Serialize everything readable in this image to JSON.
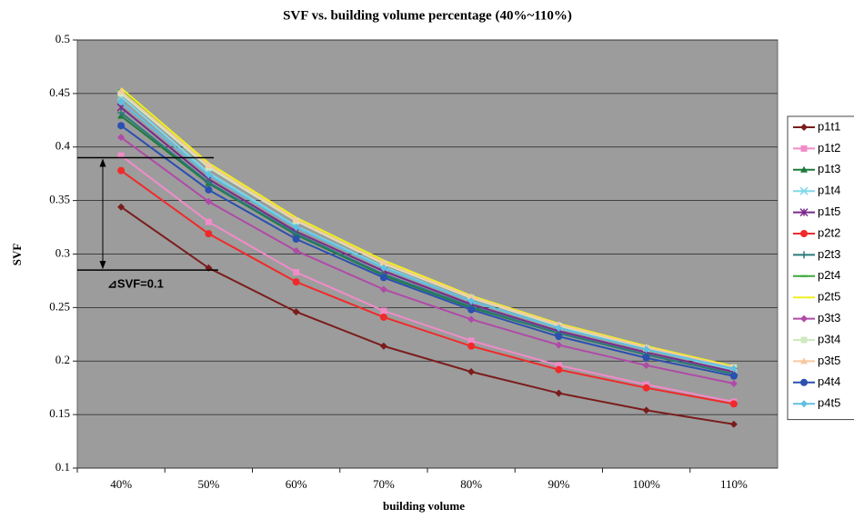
{
  "chart_data": {
    "type": "line",
    "title": "SVF vs. building volume percentage (40%~110%)",
    "xlabel": "building volume",
    "ylabel": "SVF",
    "categories": [
      "40%",
      "50%",
      "60%",
      "70%",
      "80%",
      "90%",
      "100%",
      "110%"
    ],
    "ylim": [
      0.1,
      0.5
    ],
    "yticks": [
      0.1,
      0.15,
      0.2,
      0.25,
      0.3,
      0.35,
      0.4,
      0.45,
      0.5
    ],
    "grid": true,
    "legend": "right",
    "background": "#9c9c9c",
    "annotation": {
      "text": "⊿SVF=0.1",
      "lines": [
        0.39,
        0.285
      ]
    },
    "series": [
      {
        "name": "p1t1",
        "color": "#7b1c1c",
        "marker": "diamond",
        "values": [
          0.344,
          0.287,
          0.246,
          0.214,
          0.19,
          0.17,
          0.154,
          0.141
        ]
      },
      {
        "name": "p1t2",
        "color": "#f08cc8",
        "marker": "square",
        "values": [
          0.392,
          0.33,
          0.283,
          0.247,
          0.219,
          0.196,
          0.178,
          0.162
        ]
      },
      {
        "name": "p1t3",
        "color": "#1f7a3a",
        "marker": "triangle",
        "values": [
          0.429,
          0.366,
          0.318,
          0.28,
          0.25,
          0.226,
          0.206,
          0.188
        ]
      },
      {
        "name": "p1t4",
        "color": "#7fd8e8",
        "marker": "x",
        "values": [
          0.447,
          0.376,
          0.326,
          0.288,
          0.256,
          0.231,
          0.211,
          0.192
        ]
      },
      {
        "name": "p1t5",
        "color": "#7a2a8a",
        "marker": "star",
        "values": [
          0.437,
          0.37,
          0.321,
          0.284,
          0.253,
          0.228,
          0.208,
          0.19
        ]
      },
      {
        "name": "p2t2",
        "color": "#f02a2a",
        "marker": "circle",
        "values": [
          0.378,
          0.319,
          0.274,
          0.241,
          0.214,
          0.192,
          0.175,
          0.16
        ]
      },
      {
        "name": "p2t3",
        "color": "#2a7a7a",
        "marker": "plus",
        "values": [
          0.432,
          0.367,
          0.319,
          0.281,
          0.251,
          0.226,
          0.206,
          0.188
        ]
      },
      {
        "name": "p2t4",
        "color": "#3aaa3a",
        "marker": "dash",
        "values": [
          0.453,
          0.384,
          0.333,
          0.293,
          0.261,
          0.235,
          0.214,
          0.195
        ]
      },
      {
        "name": "p2t5",
        "color": "#f0f020",
        "marker": "none",
        "values": [
          0.455,
          0.385,
          0.334,
          0.294,
          0.261,
          0.235,
          0.214,
          0.195
        ]
      },
      {
        "name": "p3t3",
        "color": "#b04aa8",
        "marker": "diamond",
        "values": [
          0.409,
          0.349,
          0.303,
          0.267,
          0.239,
          0.215,
          0.196,
          0.179
        ]
      },
      {
        "name": "p3t4",
        "color": "#cfe8c0",
        "marker": "square",
        "values": [
          0.45,
          0.381,
          0.331,
          0.291,
          0.259,
          0.233,
          0.212,
          0.194
        ]
      },
      {
        "name": "p3t5",
        "color": "#f8c8a0",
        "marker": "triangle",
        "values": [
          0.452,
          0.383,
          0.332,
          0.292,
          0.26,
          0.234,
          0.213,
          0.194
        ]
      },
      {
        "name": "p4t4",
        "color": "#2a50b0",
        "marker": "circle",
        "values": [
          0.42,
          0.36,
          0.314,
          0.278,
          0.248,
          0.223,
          0.203,
          0.186
        ]
      },
      {
        "name": "p4t5",
        "color": "#60c0e0",
        "marker": "diamond",
        "values": [
          0.442,
          0.374,
          0.325,
          0.287,
          0.256,
          0.231,
          0.211,
          0.193
        ]
      }
    ]
  }
}
